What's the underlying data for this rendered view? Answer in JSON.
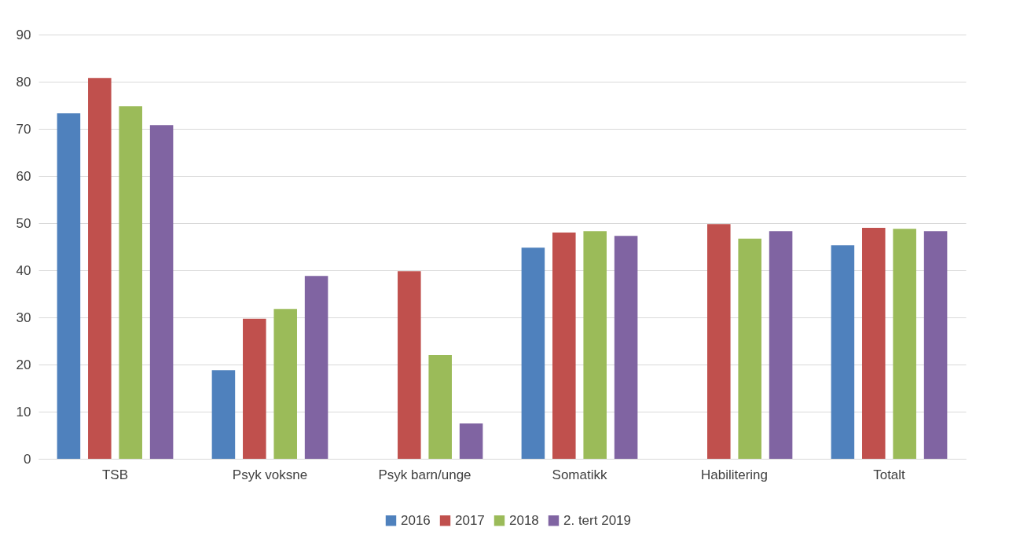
{
  "chart_data": {
    "type": "bar",
    "categories": [
      "TSB",
      "Psyk voksne",
      "Psyk barn/unge",
      "Somatikk",
      "Habilitering",
      "Totalt"
    ],
    "series": [
      {
        "name": "2016",
        "color": "#4f81bd",
        "values": [
          73.3,
          18.8,
          null,
          44.8,
          null,
          45.3
        ]
      },
      {
        "name": "2017",
        "color": "#c0504d",
        "values": [
          80.8,
          29.7,
          39.8,
          48,
          49.8,
          49
        ]
      },
      {
        "name": "2018",
        "color": "#9bbb59",
        "values": [
          74.8,
          31.8,
          22,
          48.3,
          46.7,
          48.8
        ]
      },
      {
        "name": "2. tert 2019",
        "color": "#8064a2",
        "values": [
          70.8,
          38.8,
          7.5,
          47.3,
          48.3,
          48.3
        ]
      }
    ],
    "ylim": [
      0,
      90
    ],
    "yticks": [
      0,
      10,
      20,
      30,
      40,
      50,
      60,
      70,
      80,
      90
    ],
    "grid": "y",
    "legend": "bottom"
  }
}
